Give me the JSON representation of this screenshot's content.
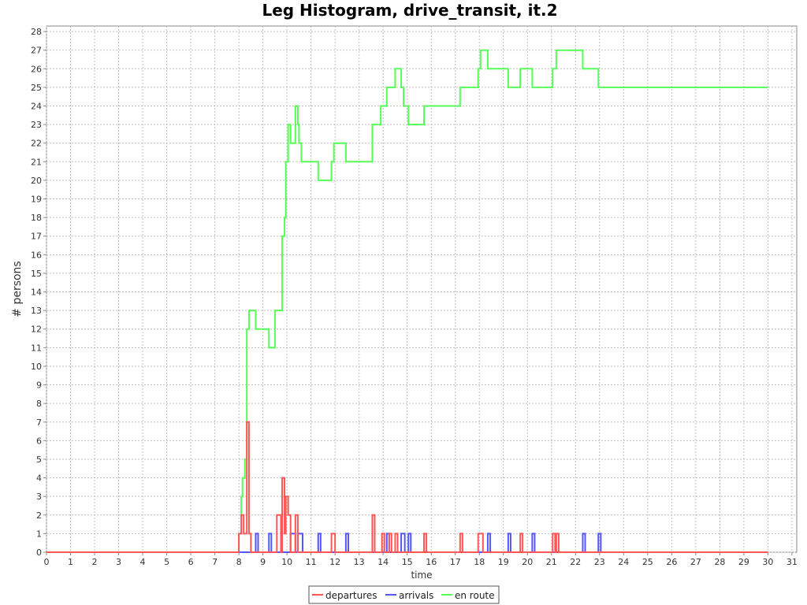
{
  "chart_data": {
    "type": "line",
    "title": "Leg Histogram, drive_transit, it.2",
    "xlabel": "time",
    "ylabel": "# persons",
    "xlim": [
      0,
      31.2
    ],
    "ylim": [
      0,
      28.3
    ],
    "x_ticks": [
      0,
      1,
      2,
      3,
      4,
      5,
      6,
      7,
      8,
      9,
      10,
      11,
      12,
      13,
      14,
      15,
      16,
      17,
      18,
      19,
      20,
      21,
      22,
      23,
      24,
      25,
      26,
      27,
      28,
      29,
      30,
      31
    ],
    "y_ticks": [
      0,
      1,
      2,
      3,
      4,
      5,
      6,
      7,
      8,
      9,
      10,
      11,
      12,
      13,
      14,
      15,
      16,
      17,
      18,
      19,
      20,
      21,
      22,
      23,
      24,
      25,
      26,
      27,
      28
    ],
    "grid": true,
    "legend_position": "bottom",
    "series": [
      {
        "name": "departures",
        "color": "#ff5555",
        "step": true,
        "points": [
          [
            0,
            0
          ],
          [
            8.0,
            0
          ],
          [
            8.0,
            1
          ],
          [
            8.1,
            1
          ],
          [
            8.1,
            2
          ],
          [
            8.2,
            2
          ],
          [
            8.2,
            1
          ],
          [
            8.33,
            1
          ],
          [
            8.33,
            7
          ],
          [
            8.42,
            7
          ],
          [
            8.42,
            1
          ],
          [
            8.5,
            1
          ],
          [
            8.5,
            0
          ],
          [
            9.58,
            0
          ],
          [
            9.58,
            2
          ],
          [
            9.75,
            2
          ],
          [
            9.75,
            0
          ],
          [
            9.8,
            0
          ],
          [
            9.8,
            4
          ],
          [
            9.9,
            4
          ],
          [
            9.9,
            1
          ],
          [
            9.95,
            1
          ],
          [
            9.95,
            3
          ],
          [
            10.05,
            3
          ],
          [
            10.05,
            2
          ],
          [
            10.15,
            2
          ],
          [
            10.15,
            0
          ],
          [
            10.35,
            0
          ],
          [
            10.35,
            2
          ],
          [
            10.45,
            2
          ],
          [
            10.45,
            0
          ],
          [
            11.85,
            0
          ],
          [
            11.85,
            1
          ],
          [
            12.0,
            1
          ],
          [
            12.0,
            0
          ],
          [
            13.55,
            0
          ],
          [
            13.55,
            2
          ],
          [
            13.65,
            2
          ],
          [
            13.65,
            0
          ],
          [
            13.95,
            0
          ],
          [
            13.95,
            1
          ],
          [
            14.05,
            1
          ],
          [
            14.05,
            0
          ],
          [
            14.25,
            0
          ],
          [
            14.25,
            1
          ],
          [
            14.35,
            1
          ],
          [
            14.35,
            0
          ],
          [
            14.5,
            0
          ],
          [
            14.5,
            1
          ],
          [
            14.6,
            1
          ],
          [
            14.6,
            0
          ],
          [
            15.7,
            0
          ],
          [
            15.7,
            1
          ],
          [
            15.8,
            1
          ],
          [
            15.8,
            0
          ],
          [
            17.2,
            0
          ],
          [
            17.2,
            1
          ],
          [
            17.3,
            1
          ],
          [
            17.3,
            0
          ],
          [
            17.95,
            0
          ],
          [
            17.95,
            1
          ],
          [
            18.15,
            1
          ],
          [
            18.15,
            0
          ],
          [
            19.7,
            0
          ],
          [
            19.7,
            1
          ],
          [
            19.8,
            1
          ],
          [
            19.8,
            0
          ],
          [
            21.05,
            0
          ],
          [
            21.05,
            1
          ],
          [
            21.15,
            1
          ],
          [
            21.15,
            0
          ],
          [
            21.2,
            0
          ],
          [
            21.2,
            1
          ],
          [
            21.3,
            1
          ],
          [
            21.3,
            0
          ],
          [
            30.0,
            0
          ]
        ]
      },
      {
        "name": "arrivals",
        "color": "#5555ff",
        "step": true,
        "points": [
          [
            0,
            0
          ],
          [
            8.7,
            0
          ],
          [
            8.7,
            1
          ],
          [
            8.8,
            1
          ],
          [
            8.8,
            0
          ],
          [
            9.25,
            0
          ],
          [
            9.25,
            1
          ],
          [
            9.35,
            1
          ],
          [
            9.35,
            0
          ],
          [
            10.15,
            0
          ],
          [
            10.15,
            1
          ],
          [
            10.35,
            1
          ],
          [
            10.35,
            0
          ],
          [
            10.45,
            0
          ],
          [
            10.45,
            1
          ],
          [
            10.65,
            1
          ],
          [
            10.65,
            0
          ],
          [
            11.3,
            0
          ],
          [
            11.3,
            1
          ],
          [
            11.4,
            1
          ],
          [
            11.4,
            0
          ],
          [
            12.45,
            0
          ],
          [
            12.45,
            1
          ],
          [
            12.55,
            1
          ],
          [
            12.55,
            0
          ],
          [
            14.15,
            0
          ],
          [
            14.15,
            1
          ],
          [
            14.25,
            1
          ],
          [
            14.25,
            0
          ],
          [
            14.75,
            0
          ],
          [
            14.75,
            1
          ],
          [
            14.9,
            1
          ],
          [
            14.9,
            0
          ],
          [
            15.05,
            0
          ],
          [
            15.05,
            1
          ],
          [
            15.15,
            1
          ],
          [
            15.15,
            0
          ],
          [
            18.35,
            0
          ],
          [
            18.35,
            1
          ],
          [
            18.45,
            1
          ],
          [
            18.45,
            0
          ],
          [
            19.2,
            0
          ],
          [
            19.2,
            1
          ],
          [
            19.3,
            1
          ],
          [
            19.3,
            0
          ],
          [
            20.2,
            0
          ],
          [
            20.2,
            1
          ],
          [
            20.3,
            1
          ],
          [
            20.3,
            0
          ],
          [
            22.3,
            0
          ],
          [
            22.3,
            1
          ],
          [
            22.4,
            1
          ],
          [
            22.4,
            0
          ],
          [
            22.95,
            0
          ],
          [
            22.95,
            1
          ],
          [
            23.05,
            1
          ],
          [
            23.05,
            0
          ],
          [
            30.0,
            0
          ]
        ]
      },
      {
        "name": "en route",
        "color": "#55ff55",
        "step": true,
        "points": [
          [
            0,
            0
          ],
          [
            8.0,
            0
          ],
          [
            8.0,
            1
          ],
          [
            8.1,
            1
          ],
          [
            8.1,
            3
          ],
          [
            8.15,
            3
          ],
          [
            8.15,
            4
          ],
          [
            8.25,
            4
          ],
          [
            8.25,
            5
          ],
          [
            8.33,
            5
          ],
          [
            8.33,
            12
          ],
          [
            8.42,
            12
          ],
          [
            8.42,
            13
          ],
          [
            8.7,
            13
          ],
          [
            8.7,
            12
          ],
          [
            9.25,
            12
          ],
          [
            9.25,
            11
          ],
          [
            9.5,
            11
          ],
          [
            9.5,
            13
          ],
          [
            9.8,
            13
          ],
          [
            9.8,
            17
          ],
          [
            9.9,
            17
          ],
          [
            9.9,
            18
          ],
          [
            9.95,
            18
          ],
          [
            9.95,
            21
          ],
          [
            10.05,
            21
          ],
          [
            10.05,
            23
          ],
          [
            10.15,
            23
          ],
          [
            10.15,
            22
          ],
          [
            10.35,
            22
          ],
          [
            10.35,
            24
          ],
          [
            10.45,
            24
          ],
          [
            10.45,
            23
          ],
          [
            10.5,
            23
          ],
          [
            10.5,
            22
          ],
          [
            10.6,
            22
          ],
          [
            10.6,
            21
          ],
          [
            11.3,
            21
          ],
          [
            11.3,
            20
          ],
          [
            11.85,
            20
          ],
          [
            11.85,
            21
          ],
          [
            11.95,
            21
          ],
          [
            11.95,
            22
          ],
          [
            12.45,
            22
          ],
          [
            12.45,
            21
          ],
          [
            13.55,
            21
          ],
          [
            13.55,
            23
          ],
          [
            13.9,
            23
          ],
          [
            13.9,
            24
          ],
          [
            14.15,
            24
          ],
          [
            14.15,
            25
          ],
          [
            14.5,
            25
          ],
          [
            14.5,
            26
          ],
          [
            14.75,
            26
          ],
          [
            14.75,
            25
          ],
          [
            14.85,
            25
          ],
          [
            14.85,
            24
          ],
          [
            15.05,
            24
          ],
          [
            15.05,
            23
          ],
          [
            15.7,
            23
          ],
          [
            15.7,
            24
          ],
          [
            17.2,
            24
          ],
          [
            17.2,
            25
          ],
          [
            17.95,
            25
          ],
          [
            17.95,
            26
          ],
          [
            18.05,
            26
          ],
          [
            18.05,
            27
          ],
          [
            18.35,
            27
          ],
          [
            18.35,
            26
          ],
          [
            19.2,
            26
          ],
          [
            19.2,
            25
          ],
          [
            19.7,
            25
          ],
          [
            19.7,
            26
          ],
          [
            20.2,
            26
          ],
          [
            20.2,
            25
          ],
          [
            21.05,
            25
          ],
          [
            21.05,
            26
          ],
          [
            21.2,
            26
          ],
          [
            21.2,
            27
          ],
          [
            22.3,
            27
          ],
          [
            22.3,
            26
          ],
          [
            22.95,
            26
          ],
          [
            22.95,
            25
          ],
          [
            30.0,
            25
          ]
        ]
      }
    ]
  }
}
